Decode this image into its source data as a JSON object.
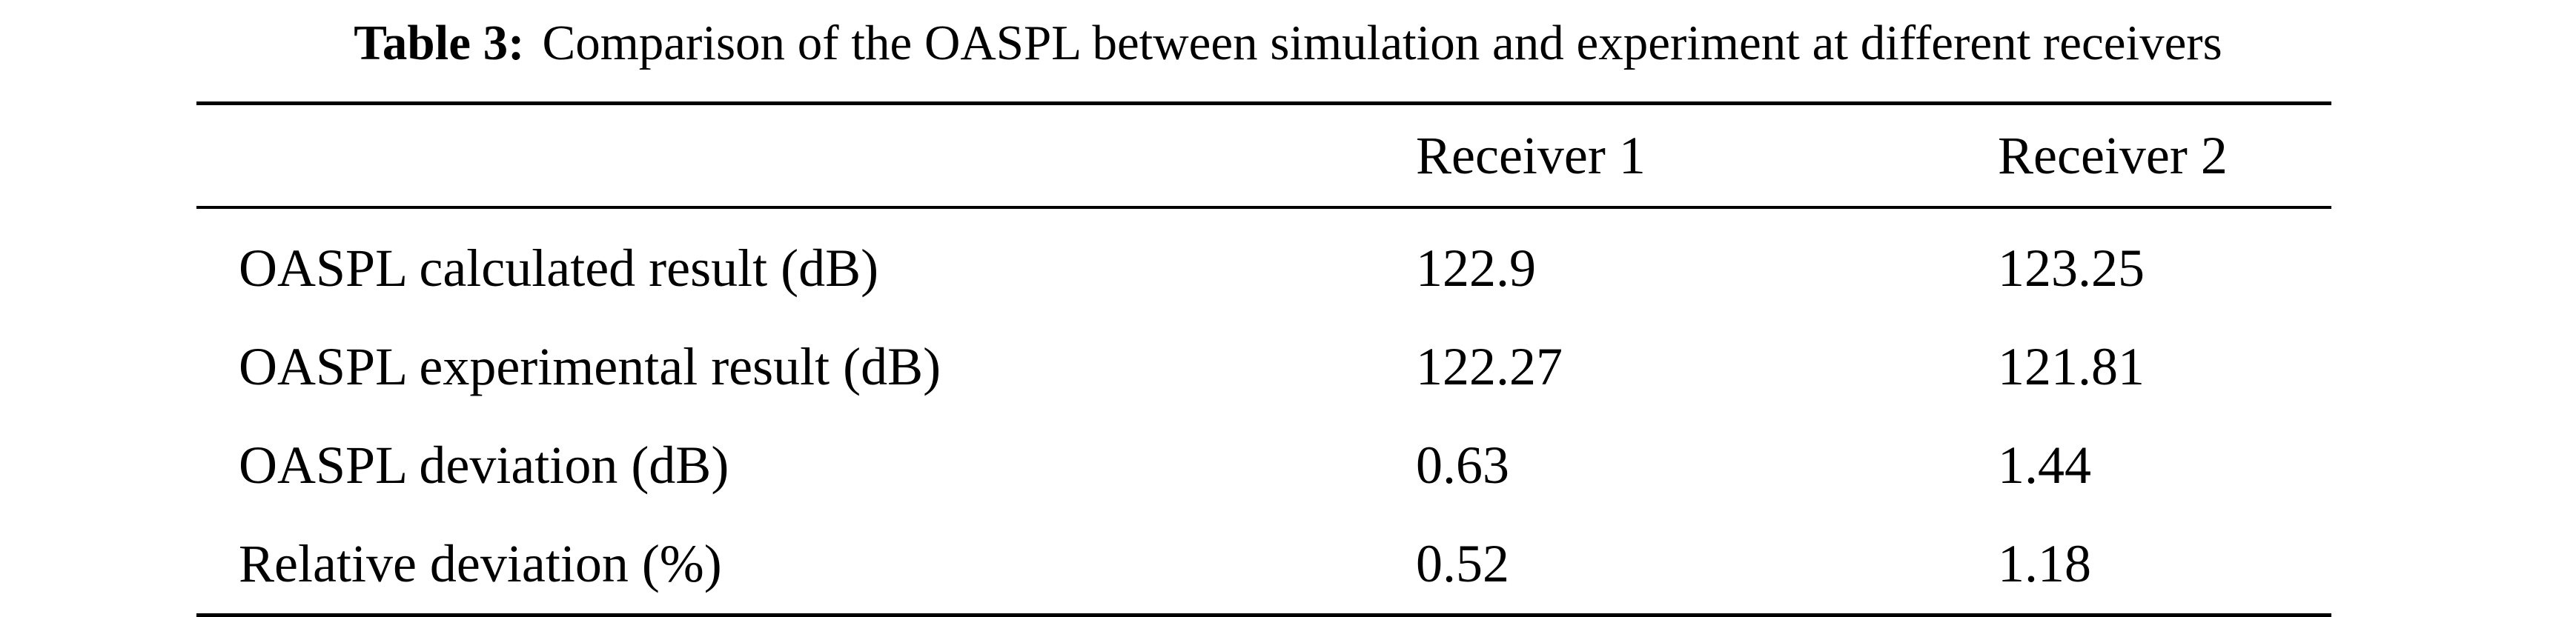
{
  "caption": {
    "label": "Table 3:",
    "text": "Comparison of the OASPL between simulation and experiment at different receivers"
  },
  "table": {
    "headers": [
      "",
      "Receiver 1",
      "Receiver 2"
    ],
    "rows": [
      {
        "label": "OASPL calculated result (dB)",
        "r1": "122.9",
        "r2": "123.25"
      },
      {
        "label": "OASPL experimental result (dB)",
        "r1": "122.27",
        "r2": "121.81"
      },
      {
        "label": "OASPL deviation (dB)",
        "r1": "0.63",
        "r2": "1.44"
      },
      {
        "label": "Relative deviation (%)",
        "r1": "0.52",
        "r2": "1.18"
      }
    ]
  }
}
